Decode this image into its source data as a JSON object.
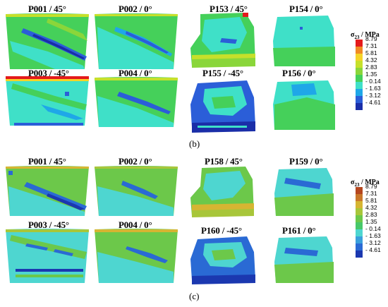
{
  "figure": {
    "sublabel_b": "(b)",
    "sublabel_c": "(c)"
  },
  "panel_b": {
    "labels": {
      "p001": "P001 / 45°",
      "p002": "P002 / 0°",
      "p003": "P003 / -45°",
      "p004": "P004 / 0°",
      "p153": "P153 / 45°",
      "p154": "P154 / 0°",
      "p155": "P155 / -45°",
      "p156": "P156 / 0°"
    },
    "legend": {
      "title_main": "σ",
      "title_sub": "23",
      "title_unit": " / MPa",
      "ticks": [
        "8.79",
        "7.31",
        "5.81",
        "4.32",
        "2.83",
        "1.35",
        "- 0.14",
        "- 1.63",
        "- 3.12",
        "- 4.61"
      ]
    }
  },
  "panel_c": {
    "labels": {
      "p001": "P001 / 45°",
      "p002": "P002 / 0°",
      "p003": "P003 / -45°",
      "p004": "P004 / 0°",
      "p158": "P158 / 45°",
      "p159": "P159 / 0°",
      "p160": "P160 / -45°",
      "p161": "P161 / 0°"
    },
    "legend": {
      "title_main": "σ",
      "title_sub": "23",
      "title_unit": " / MPa",
      "ticks": [
        "8.79",
        "7.31",
        "5.81",
        "4.32",
        "2.83",
        "1.35",
        "- 0.14",
        "- 1.63",
        "- 3.12",
        "- 4.61"
      ]
    }
  },
  "colors": {
    "scale": [
      "#e41a1c",
      "#f08a24",
      "#f5d327",
      "#c6e02a",
      "#8ad63a",
      "#45d05a",
      "#3fe0c8",
      "#1fa7e8",
      "#2b5ed8",
      "#1a2ea8"
    ],
    "scale_c": [
      "#b5471f",
      "#c9772a",
      "#d6b532",
      "#a8c63a",
      "#6cc84a",
      "#47c86a",
      "#4ed6d0",
      "#3aa0dc",
      "#2a6ad4",
      "#1b38b0"
    ]
  }
}
